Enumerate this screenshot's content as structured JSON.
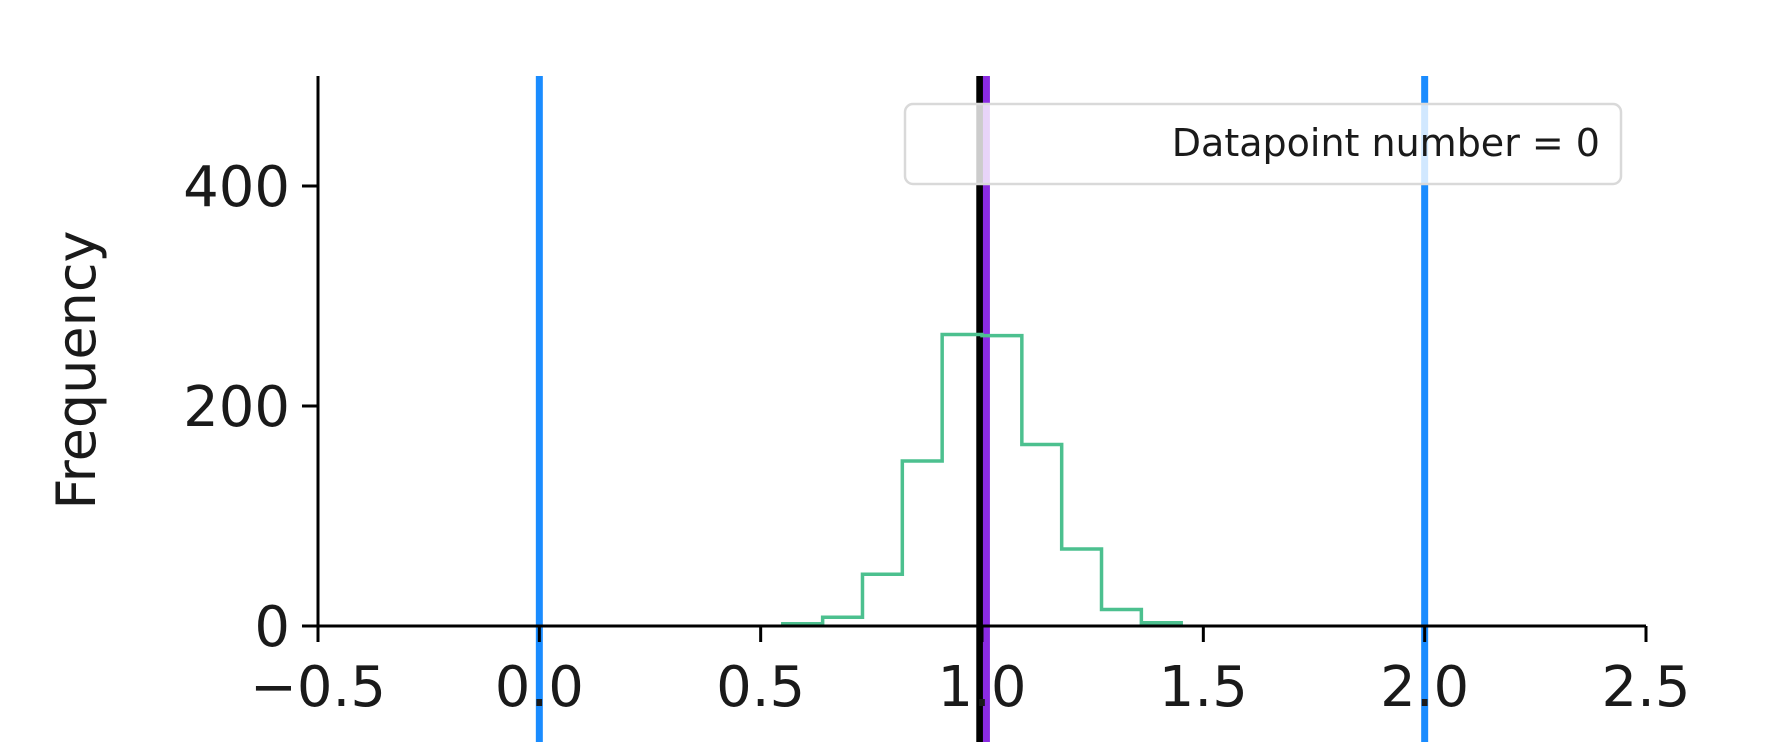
{
  "chart_data": {
    "type": "histogram",
    "title": "",
    "xlabel": "",
    "ylabel": "Frequency",
    "xlim": [
      -0.5,
      2.5
    ],
    "ylim": [
      0,
      500
    ],
    "xticks": [
      -0.5,
      0.0,
      0.5,
      1.0,
      1.5,
      2.0,
      2.5
    ],
    "xtick_labels": [
      "−0.5",
      "0.0",
      "0.5",
      "1.0",
      "1.5",
      "2.0",
      "2.5"
    ],
    "yticks": [
      0,
      200,
      400
    ],
    "ytick_labels": [
      "0",
      "200",
      "400"
    ],
    "grid": false,
    "legend": {
      "entries": [
        "Datapoint number = 0"
      ],
      "placement": "upper-right"
    },
    "histogram": {
      "bin_edges": [
        0.55,
        0.64,
        0.73,
        0.82,
        0.91,
        1.0,
        1.09,
        1.18,
        1.27,
        1.36,
        1.45
      ],
      "counts": [
        2,
        8,
        47,
        150,
        265,
        264,
        165,
        70,
        15,
        3
      ],
      "color": "#4cc08f"
    },
    "vertical_lines": [
      {
        "x": 0.0,
        "color": "#1a8cff"
      },
      {
        "x": 2.0,
        "color": "#1a8cff"
      },
      {
        "x": 0.995,
        "color": "#000000"
      },
      {
        "x": 1.01,
        "color": "#8a2be2"
      }
    ]
  }
}
